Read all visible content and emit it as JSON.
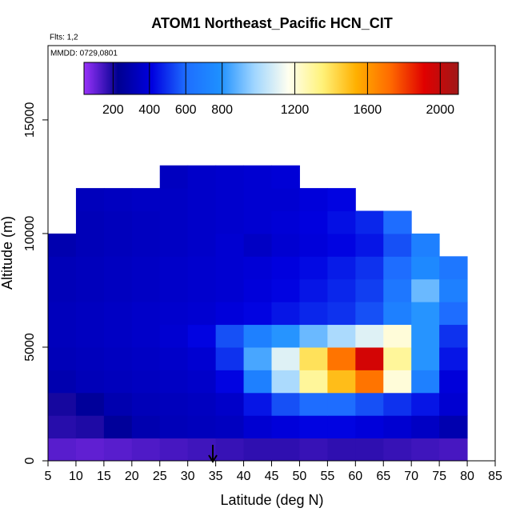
{
  "chart_data": {
    "type": "heatmap",
    "title": "ATOM1 Northeast_Pacific HCN_CIT",
    "subtitle_flights": "Flts: 1,2",
    "subtitle_dates": "MMDD: 0729,0801",
    "x_label": "Latitude (deg N)",
    "y_label": "Altitude (m)",
    "xlim": [
      5,
      85
    ],
    "ylim": [
      0,
      18270
    ],
    "xticks": [
      5,
      10,
      15,
      20,
      25,
      30,
      35,
      40,
      45,
      50,
      55,
      60,
      65,
      70,
      75,
      80,
      85
    ],
    "yticks": [
      0,
      5000,
      10000,
      15000
    ],
    "x_bins": [
      5,
      10,
      15,
      20,
      25,
      30,
      35,
      40,
      45,
      50,
      55,
      60,
      65,
      70,
      75,
      80
    ],
    "y_bins": [
      0,
      1000,
      2000,
      3000,
      4000,
      5000,
      6000,
      7000,
      8000,
      9000,
      10000,
      11000,
      12000,
      13000
    ],
    "values": [
      [
        120,
        110,
        120,
        130,
        140,
        150,
        160,
        170,
        170,
        160,
        170,
        170,
        160,
        150,
        140
      ],
      [
        180,
        190,
        250,
        300,
        320,
        330,
        340,
        380,
        400,
        420,
        420,
        400,
        380,
        350,
        300
      ],
      [
        200,
        250,
        300,
        320,
        330,
        340,
        360,
        450,
        550,
        600,
        600,
        550,
        500,
        450,
        380
      ],
      [
        300,
        320,
        330,
        340,
        350,
        360,
        420,
        700,
        1000,
        1300,
        1500,
        1700,
        1200,
        700,
        400
      ],
      [
        320,
        330,
        340,
        350,
        360,
        380,
        500,
        850,
        1100,
        1400,
        1700,
        1950,
        1300,
        800,
        450
      ],
      [
        330,
        340,
        350,
        360,
        380,
        420,
        550,
        700,
        800,
        900,
        1000,
        1100,
        1200,
        800,
        500
      ],
      [
        330,
        340,
        350,
        360,
        370,
        380,
        400,
        420,
        450,
        480,
        500,
        550,
        700,
        800,
        600
      ],
      [
        320,
        330,
        340,
        350,
        360,
        370,
        380,
        400,
        420,
        450,
        480,
        520,
        650,
        900,
        700
      ],
      [
        320,
        330,
        340,
        350,
        360,
        370,
        380,
        390,
        410,
        430,
        460,
        500,
        600,
        750,
        650
      ],
      [
        300,
        320,
        330,
        340,
        350,
        360,
        380,
        350,
        380,
        400,
        420,
        450,
        550,
        700,
        null
      ],
      [
        null,
        320,
        330,
        340,
        350,
        360,
        370,
        380,
        390,
        410,
        440,
        480,
        600,
        null,
        null
      ],
      [
        null,
        330,
        340,
        350,
        350,
        360,
        370,
        380,
        380,
        400,
        420,
        null,
        null,
        null,
        null
      ],
      [
        null,
        null,
        null,
        null,
        340,
        360,
        370,
        380,
        390,
        null,
        null,
        null,
        null,
        null,
        null
      ]
    ],
    "clim": [
      40,
      2100
    ],
    "cticks": [
      200,
      400,
      600,
      800,
      1200,
      1600,
      2000
    ],
    "colors": [
      "#9932fa",
      "#000090",
      "#0000e0",
      "#1e6eff",
      "#1e90ff",
      "#9fd5ff",
      "#fffff0",
      "#fff27a",
      "#ffb000",
      "#ff6a00",
      "#e00000",
      "#a01818"
    ]
  }
}
